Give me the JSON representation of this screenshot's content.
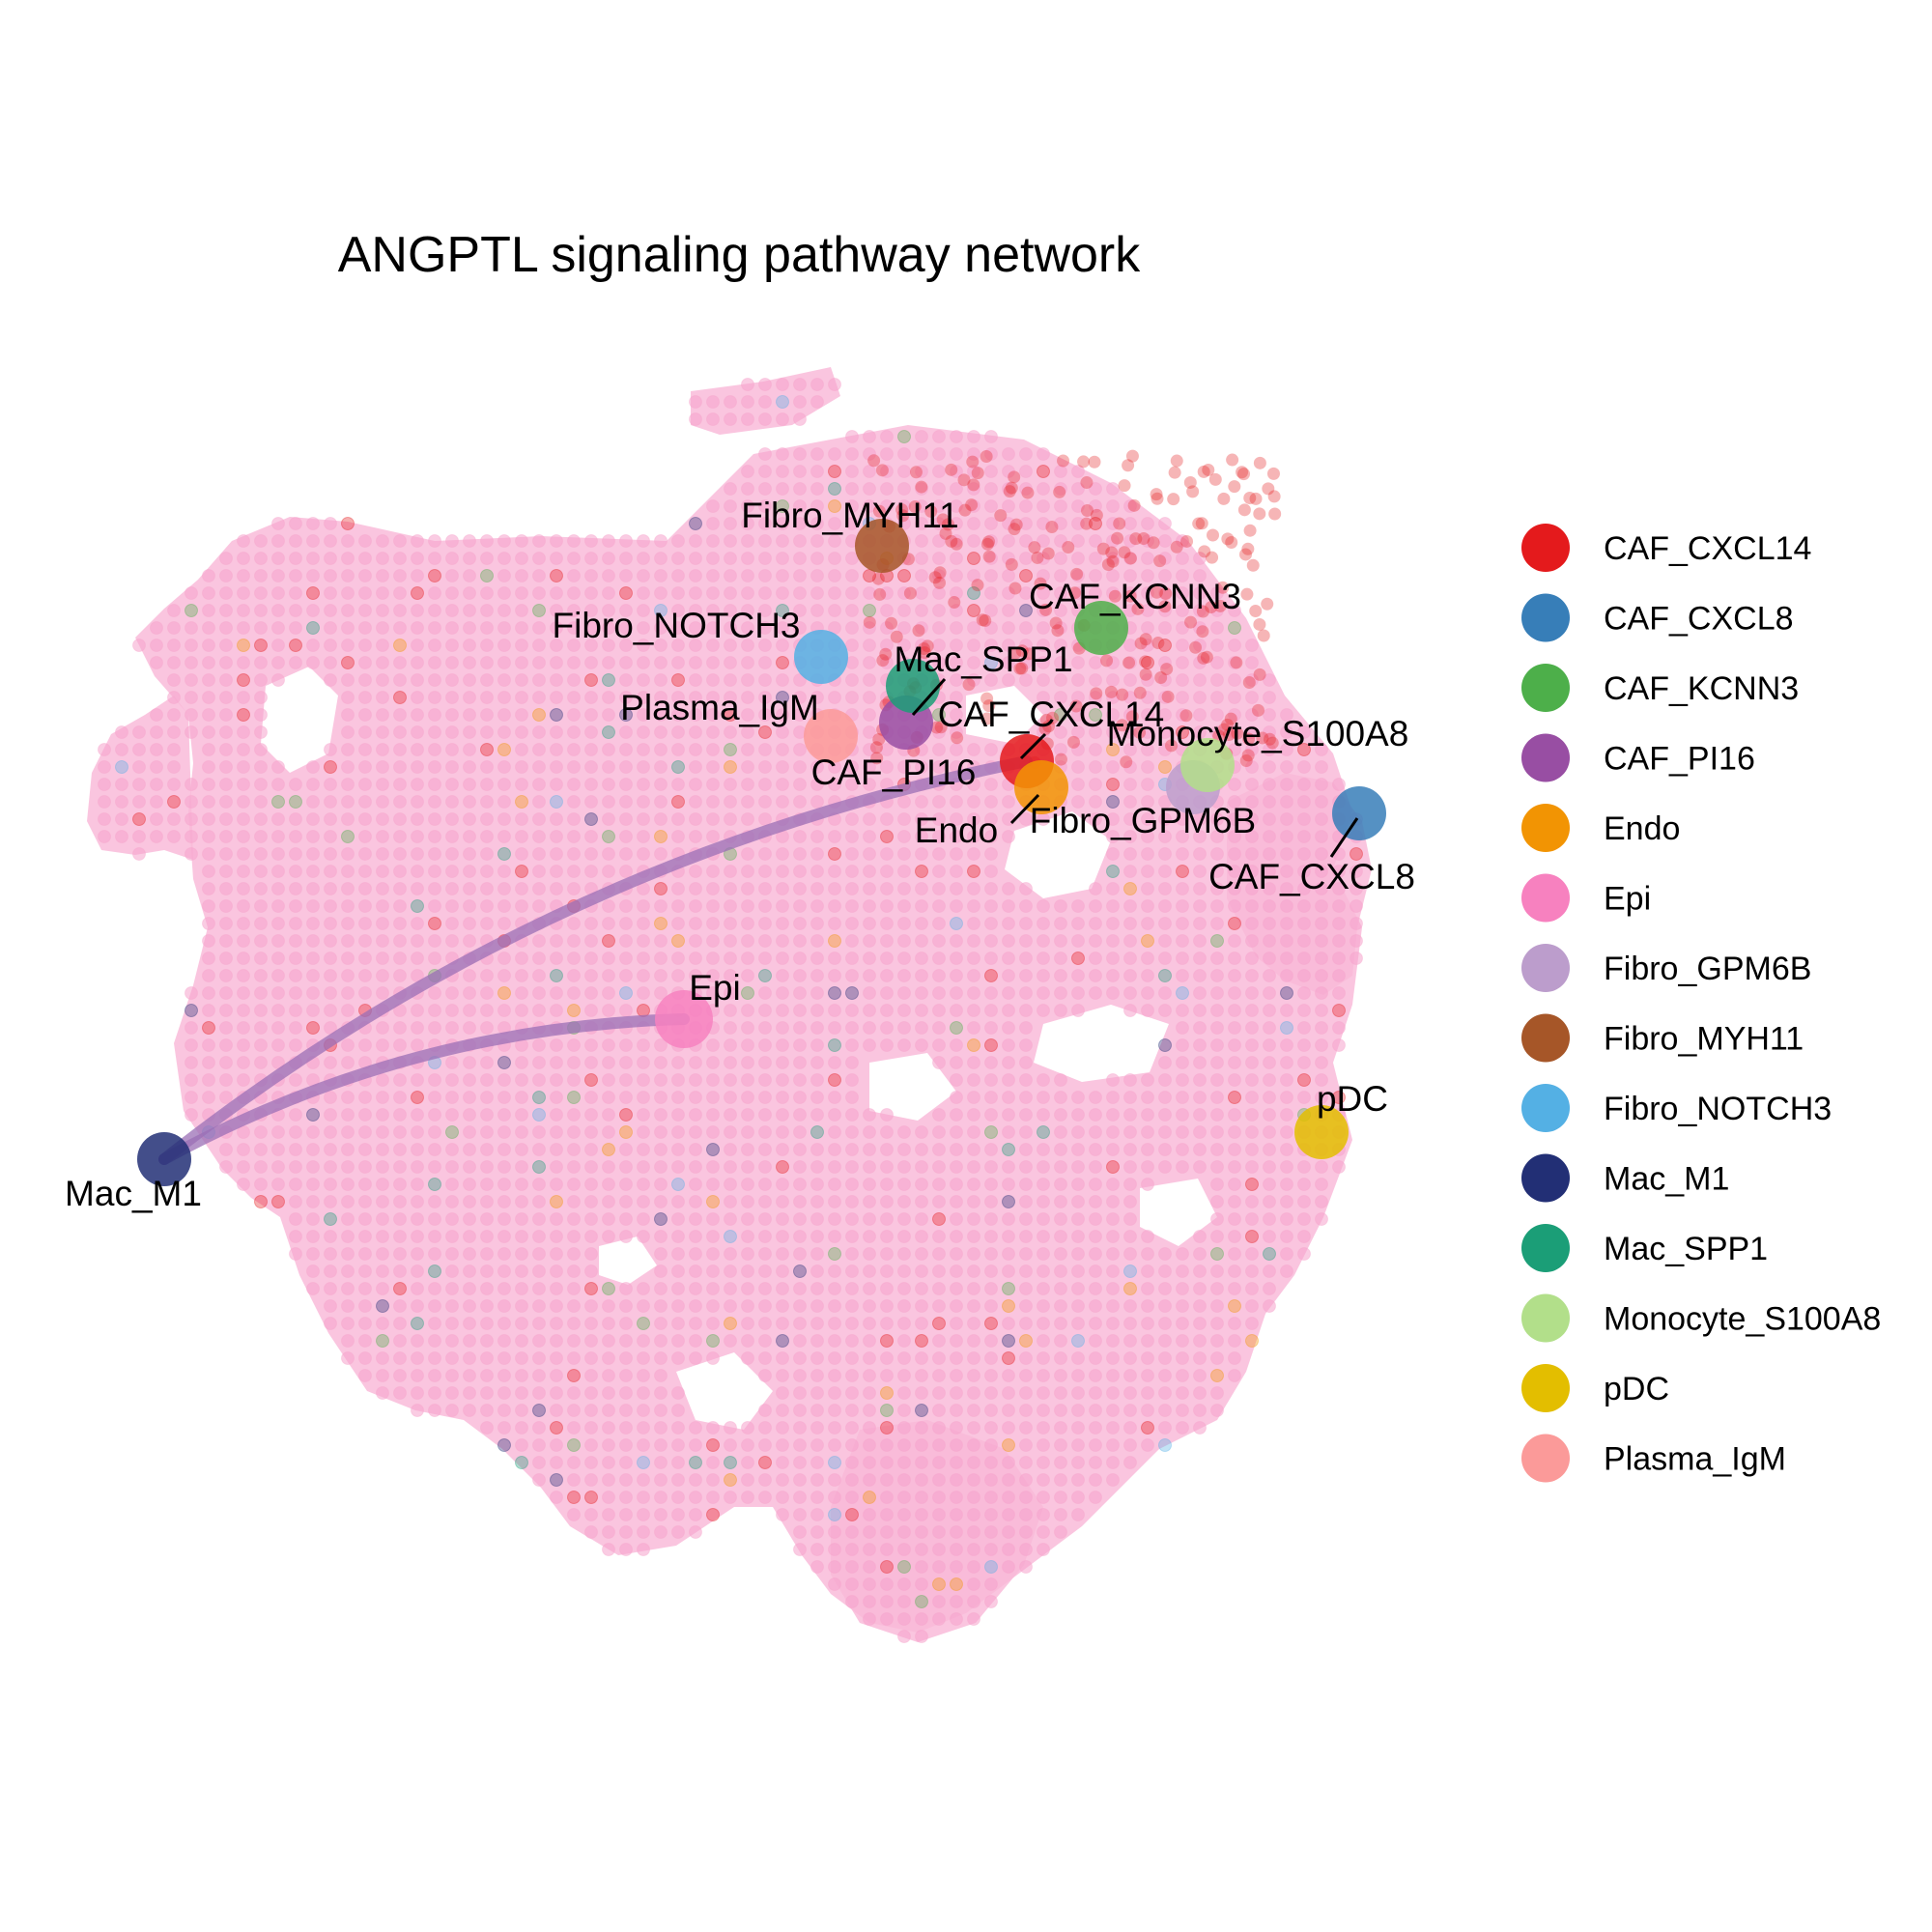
{
  "title": "ANGPTL signaling pathway network",
  "cell_types": [
    {
      "name": "CAF_CXCL14",
      "color": "#E41A1C"
    },
    {
      "name": "CAF_CXCL8",
      "color": "#377EB8"
    },
    {
      "name": "CAF_KCNN3",
      "color": "#4DAF4A"
    },
    {
      "name": "CAF_PI16",
      "color": "#984EA3"
    },
    {
      "name": "Endo",
      "color": "#F29403"
    },
    {
      "name": "Epi",
      "color": "#F781BF"
    },
    {
      "name": "Fibro_GPM6B",
      "color": "#BC9DCC"
    },
    {
      "name": "Fibro_MYH11",
      "color": "#A65628"
    },
    {
      "name": "Fibro_NOTCH3",
      "color": "#54B0E4"
    },
    {
      "name": "Mac_M1",
      "color": "#222F75"
    },
    {
      "name": "Mac_SPP1",
      "color": "#1B9E77"
    },
    {
      "name": "Monocyte_S100A8",
      "color": "#B2DF8A"
    },
    {
      "name": "pDC",
      "color": "#E3BE00"
    },
    {
      "name": "Plasma_IgM",
      "color": "#FB9A99"
    }
  ],
  "network": {
    "edge_color": "#9B6FB5",
    "edges": [
      {
        "from": "Mac_M1",
        "to": "Epi"
      },
      {
        "from": "Mac_M1",
        "to": "CAF_CXCL14"
      }
    ]
  }
}
